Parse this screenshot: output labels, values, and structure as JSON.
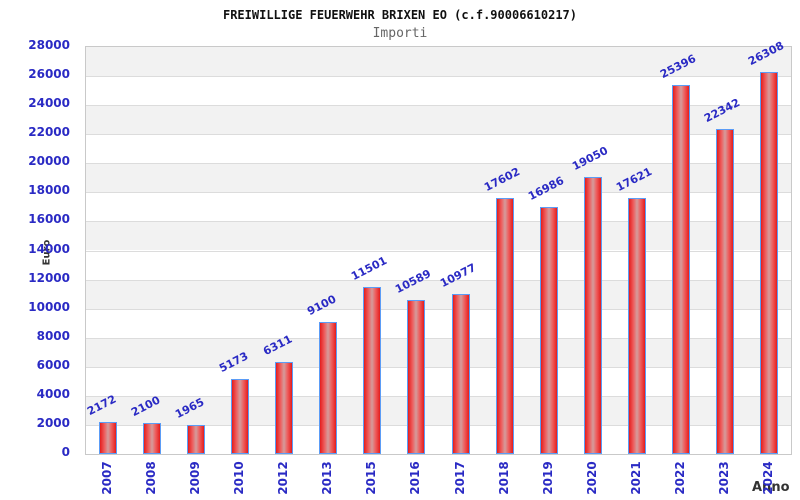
{
  "chart_data": {
    "type": "bar",
    "title": "FREIWILLIGE FEUERWEHR BRIXEN EO (c.f.90006610217)",
    "subtitle": "Importi",
    "xlabel": "Anno",
    "ylabel": "Euro",
    "categories": [
      "2007",
      "2008",
      "2009",
      "2010",
      "2012",
      "2013",
      "2015",
      "2016",
      "2017",
      "2018",
      "2019",
      "2020",
      "2021",
      "2022",
      "2023",
      "2024"
    ],
    "values": [
      2172,
      2100,
      1965,
      5173,
      6311,
      9100,
      11501,
      10589,
      10977,
      17602,
      16986,
      19050,
      17621,
      25396,
      22342,
      26308
    ],
    "ylim": [
      0,
      28000
    ],
    "y_tick_step": 2000,
    "y_ticks": [
      0,
      2000,
      4000,
      6000,
      8000,
      10000,
      12000,
      14000,
      16000,
      18000,
      20000,
      22000,
      24000,
      26000,
      28000
    ],
    "grid": "horizontal-bands-alternating",
    "legend": "none",
    "colors": {
      "bar_edge": "#e41d1d",
      "bar_mid": "#ee5e5e",
      "bar_center": "#d49c9c",
      "bar_border": "#5b9cf6",
      "label_blue": "#2a2ac4",
      "band_gray": "#f2f2f2",
      "gridline": "#dcdcdc",
      "title": "#111111",
      "subtitle": "#666666",
      "axis_title": "#333333"
    }
  }
}
